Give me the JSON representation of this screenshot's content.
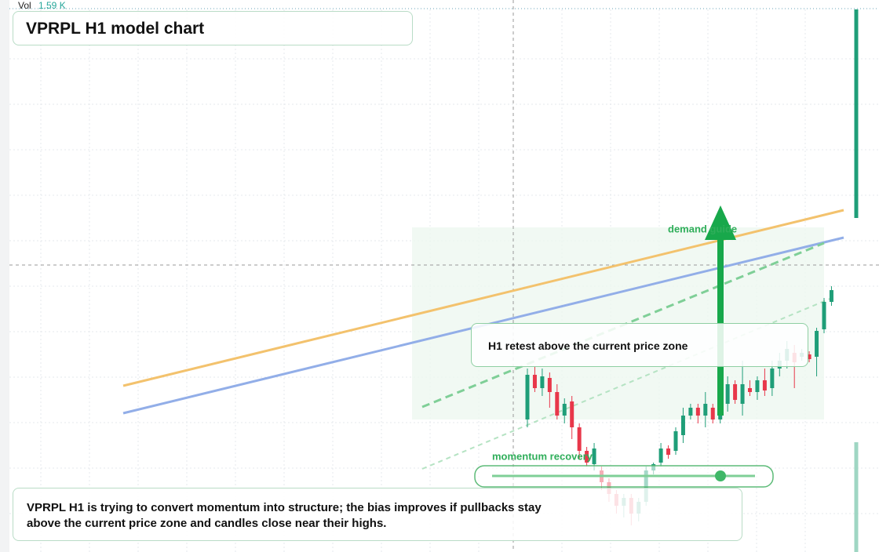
{
  "chart_data": {
    "type": "candlestick",
    "title": "VPRPL H1 model chart",
    "volume_label": "Vol",
    "volume_text": "1.59 K",
    "annotations": {
      "retest": "H1 retest above the current price zone",
      "demand": "demand guide",
      "momentum": "momentum recovery",
      "summary": "VPRPL H1 is trying to convert momentum into structure; the bias improves if pullbacks stay above the current price zone and candles close near their highs."
    },
    "up_color": "#1f9e78",
    "down_color": "#e8374a",
    "ylim": [
      0,
      704
    ],
    "open": [
      169,
      226,
      209,
      222,
      204,
      174,
      192,
      159,
      129,
      112,
      104,
      89,
      74,
      59,
      69,
      49,
      64,
      104,
      114,
      132,
      129,
      149,
      174,
      184,
      174,
      184,
      169,
      189,
      214,
      189,
      209,
      204,
      219,
      209,
      234,
      244,
      254,
      249,
      252,
      249,
      284,
      319
    ],
    "high": [
      234,
      236,
      234,
      229,
      214,
      196,
      199,
      164,
      134,
      139,
      109,
      94,
      79,
      74,
      74,
      69,
      109,
      114,
      139,
      136,
      159,
      184,
      189,
      189,
      204,
      189,
      189,
      224,
      219,
      244,
      219,
      224,
      234,
      244,
      254,
      269,
      264,
      259,
      256,
      286,
      324,
      339
    ],
    "low": [
      159,
      204,
      199,
      184,
      169,
      164,
      144,
      119,
      109,
      104,
      79,
      64,
      49,
      44,
      34,
      39,
      59,
      99,
      109,
      119,
      124,
      139,
      169,
      164,
      159,
      164,
      164,
      179,
      189,
      174,
      199,
      194,
      199,
      199,
      224,
      234,
      209,
      244,
      242,
      224,
      279,
      314
    ],
    "close": [
      226,
      209,
      224,
      204,
      174,
      189,
      159,
      129,
      114,
      132,
      89,
      74,
      59,
      69,
      49,
      64,
      104,
      112,
      132,
      124,
      154,
      174,
      184,
      174,
      189,
      169,
      184,
      214,
      194,
      214,
      204,
      219,
      206,
      234,
      244,
      259,
      242,
      254,
      246,
      282,
      319,
      334
    ]
  }
}
